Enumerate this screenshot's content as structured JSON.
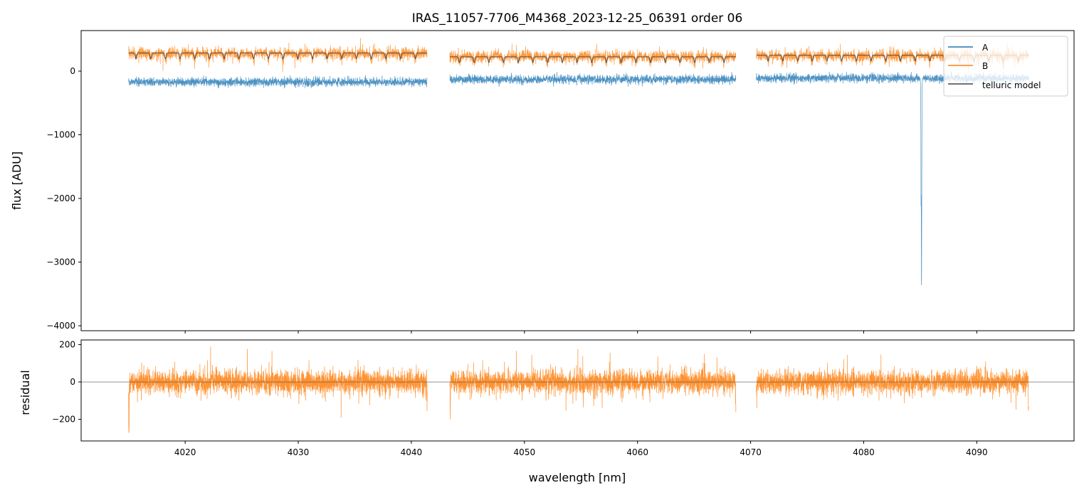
{
  "chart_data": [
    {
      "type": "line",
      "title": "IRAS_11057-7706_M4368_2023-12-25_06391  order 06",
      "xlabel": "",
      "ylabel": "flux [ADU]",
      "xlim": [
        4010.8,
        4098.6
      ],
      "ylim": [
        -4078,
        637
      ],
      "yticks": [
        0,
        -1000,
        -2000,
        -3000,
        -4000
      ],
      "ytick_labels": [
        "0",
        "−1000",
        "−2000",
        "−3000",
        "−4000"
      ],
      "grid": false,
      "legend_position": "top-right",
      "segments": [
        [
          4015.0,
          4041.4
        ],
        [
          4043.4,
          4068.7
        ],
        [
          4070.5,
          4094.6
        ]
      ],
      "series": [
        {
          "name": "A",
          "color": "#1f77b4",
          "levels": [
            -170,
            -130,
            -110
          ],
          "noise": 35,
          "spike": {
            "x": 4085.1,
            "y": -3850
          }
        },
        {
          "name": "B",
          "color": "#ff7f0e",
          "levels": [
            280,
            230,
            240
          ],
          "noise": 45
        },
        {
          "name": "telluric model",
          "color": "#444444",
          "levels": [
            285,
            225,
            250
          ],
          "dip_depth": 90,
          "dip_spacing_nm": 1.3
        }
      ]
    },
    {
      "type": "line",
      "title": "",
      "xlabel": "wavelength [nm]",
      "ylabel": "residual",
      "xlim": [
        4010.8,
        4098.6
      ],
      "ylim": [
        -316,
        225
      ],
      "xticks": [
        4020,
        4030,
        4040,
        4050,
        4060,
        4070,
        4080,
        4090
      ],
      "xtick_labels": [
        "4020",
        "4030",
        "4040",
        "4050",
        "4060",
        "4070",
        "4080",
        "4090"
      ],
      "yticks": [
        200,
        0,
        -200
      ],
      "ytick_labels": [
        "200",
        "0",
        "−200"
      ],
      "reference_line": 0,
      "series": [
        {
          "name": "residual",
          "color": "#ff7f0e",
          "level": 0,
          "noise": 55,
          "edge_spikes": [
            -280,
            -270,
            -250,
            -200,
            -230,
            -180
          ]
        }
      ]
    }
  ]
}
